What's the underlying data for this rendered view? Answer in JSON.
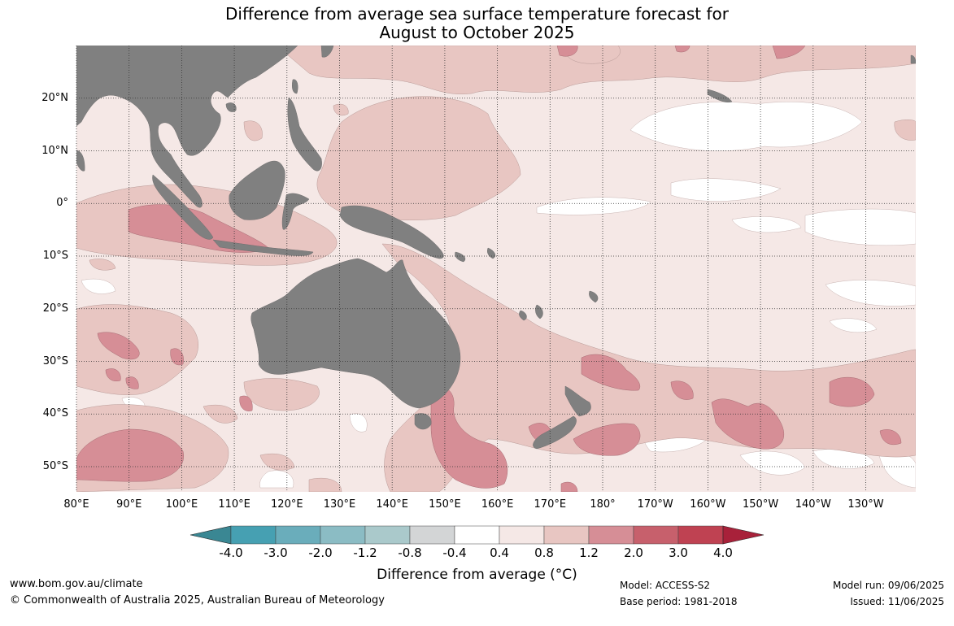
{
  "title_line1": "Difference from average sea surface temperature forecast for",
  "title_line2": "August to October 2025",
  "map": {
    "lat_labels": [
      "20°N",
      "10°N",
      "0°",
      "10°S",
      "20°S",
      "30°S",
      "40°S",
      "50°S"
    ],
    "lon_labels": [
      "80°E",
      "90°E",
      "100°E",
      "110°E",
      "120°E",
      "130°E",
      "140°E",
      "150°E",
      "160°E",
      "170°E",
      "180°",
      "170°W",
      "160°W",
      "150°W",
      "140°W",
      "130°W"
    ],
    "colors": {
      "land": "#808080",
      "anom_0": "#ffffff",
      "anom_04": "#f5e8e6",
      "anom_08": "#e8c6c2",
      "anom_12": "#d68e96",
      "anom_20": "#c7606c"
    }
  },
  "colorbar": {
    "ticks": [
      "-4.0",
      "-3.0",
      "-2.0",
      "-1.2",
      "-0.8",
      "-0.4",
      "0.4",
      "0.8",
      "1.2",
      "2.0",
      "3.0",
      "4.0"
    ],
    "colors": [
      "#46a0b2",
      "#6aadbb",
      "#8bbcc4",
      "#aac9cb",
      "#d3d5d6",
      "#ffffff",
      "#f5e8e6",
      "#e8c6c2",
      "#d68e96",
      "#c7606c",
      "#bf4252"
    ],
    "low_extend_color": "#3a8793",
    "high_extend_color": "#a8213a",
    "title": "Difference from average (°C)"
  },
  "footer": {
    "url": "www.bom.gov.au/climate",
    "copyright": "© Commonwealth of Australia 2025, Australian Bureau of Meteorology",
    "model": "Model: ACCESS-S2",
    "base_period": "Base period: 1981-2018",
    "model_run": "Model run: 09/06/2025",
    "issued": "Issued: 11/06/2025"
  }
}
